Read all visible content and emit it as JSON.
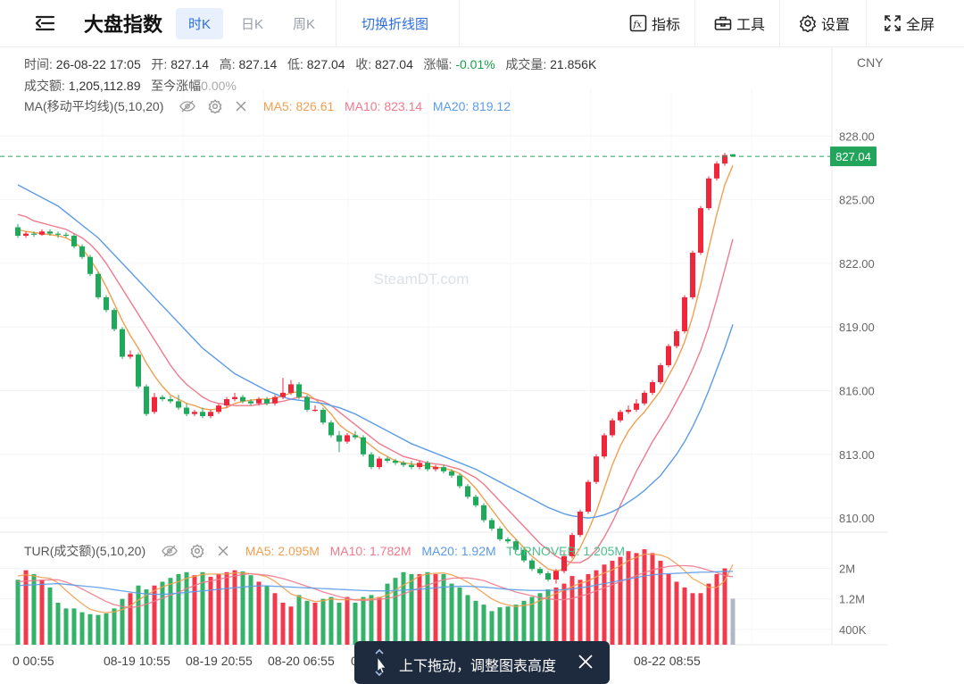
{
  "toolbar": {
    "title": "大盘指数",
    "periods": [
      "时K",
      "日K",
      "周K"
    ],
    "switch_label": "切换折线图",
    "indicators_label": "指标",
    "tools_label": "工具",
    "settings_label": "设置",
    "fullscreen_label": "全屏"
  },
  "info": {
    "time_label": "时间:",
    "time": "26-08-22 17:05",
    "open_label": "开:",
    "open": "827.14",
    "high_label": "高:",
    "high": "827.14",
    "low_label": "低:",
    "low": "827.04",
    "close_label": "收:",
    "close": "827.04",
    "change_label": "涨幅:",
    "change": "-0.01%",
    "volume_label": "成交量:",
    "volume": "21.856K",
    "amount_label": "成交额:",
    "amount": "1,205,112.89",
    "cum_label": "至今涨幅",
    "cum": "0.00%"
  },
  "ma": {
    "label": "MA(移动平均线)(5,10,20)",
    "ma5": "MA5: 826.61",
    "ma10": "MA10: 823.14",
    "ma20": "MA20: 819.12"
  },
  "tur": {
    "label": "TUR(成交额)(5,10,20)",
    "ma5": "MA5: 2.095M",
    "ma10": "MA10: 1.782M",
    "ma20": "MA20: 1.92M",
    "turnover": "TURNOVER: 1.205M"
  },
  "currency": "CNY",
  "watermark": "SteamDT.com",
  "price_tag": "827.04",
  "toast": {
    "text": "上下拖动，调整图表高度"
  },
  "colors": {
    "up": "#f0263a",
    "down": "#1eaa5a",
    "ma5": "#f0a050",
    "ma10": "#f07a8c",
    "ma20": "#5b9be8",
    "accent": "#2f6fdc",
    "last_price": "#22a55a"
  },
  "chart_data": {
    "type": "candlestick",
    "price_axis": {
      "ticks": [
        828,
        825,
        822,
        819,
        816,
        813,
        810
      ],
      "tick_labels": [
        "828.00",
        "825.00",
        "822.00",
        "819.00",
        "816.00",
        "813.00",
        "810.00"
      ],
      "range": [
        809.5,
        830.2
      ]
    },
    "volume_axis": {
      "ticks": [
        2000000,
        1200000,
        400000
      ],
      "tick_labels": [
        "2M",
        "1.2M",
        "400K"
      ],
      "range": [
        0,
        2900000
      ]
    },
    "x_labels": [
      "0 00:55",
      "08-19 10:55",
      "08-19 20:55",
      "08-20 06:55",
      "08-20 1",
      "08-22 08:55"
    ],
    "last_price": 827.04,
    "candles": [
      [
        823.7,
        823.3,
        823.85,
        823.2
      ],
      [
        823.3,
        823.4,
        823.5,
        823.2
      ],
      [
        823.4,
        823.35,
        823.5,
        823.25
      ],
      [
        823.35,
        823.5,
        823.6,
        823.3
      ],
      [
        823.5,
        823.4,
        823.6,
        823.3
      ],
      [
        823.4,
        823.35,
        823.5,
        823.2
      ],
      [
        823.35,
        823.3,
        823.45,
        823.2
      ],
      [
        823.3,
        822.8,
        823.4,
        822.7
      ],
      [
        822.8,
        822.3,
        822.9,
        822.2
      ],
      [
        822.3,
        821.5,
        822.4,
        821.4
      ],
      [
        821.5,
        820.4,
        821.6,
        820.3
      ],
      [
        820.4,
        819.8,
        820.5,
        819.7
      ],
      [
        819.8,
        818.9,
        819.9,
        818.8
      ],
      [
        818.9,
        817.6,
        819.0,
        817.5
      ],
      [
        817.6,
        817.7,
        817.9,
        817.5
      ],
      [
        817.7,
        816.2,
        817.8,
        816.1
      ],
      [
        816.2,
        814.9,
        816.3,
        814.8
      ],
      [
        815.0,
        815.7,
        815.9,
        814.9
      ],
      [
        815.7,
        815.6,
        815.8,
        815.5
      ],
      [
        815.6,
        815.5,
        815.75,
        815.4
      ],
      [
        815.5,
        815.2,
        815.8,
        815.1
      ],
      [
        815.2,
        814.9,
        815.4,
        814.8
      ],
      [
        814.9,
        815.0,
        815.1,
        814.8
      ],
      [
        815.0,
        814.8,
        815.2,
        814.7
      ],
      [
        814.8,
        815.0,
        815.1,
        814.7
      ],
      [
        815.0,
        815.3,
        815.4,
        814.9
      ],
      [
        815.3,
        815.6,
        815.7,
        815.2
      ],
      [
        815.6,
        815.7,
        815.9,
        815.5
      ],
      [
        815.7,
        815.5,
        815.8,
        815.4
      ],
      [
        815.5,
        815.4,
        815.6,
        815.3
      ],
      [
        815.4,
        815.6,
        815.7,
        815.3
      ],
      [
        815.6,
        815.4,
        815.7,
        815.3
      ],
      [
        815.4,
        815.7,
        815.8,
        815.3
      ],
      [
        815.7,
        815.9,
        816.6,
        815.6
      ],
      [
        815.9,
        816.3,
        816.5,
        815.8
      ],
      [
        816.3,
        815.7,
        816.4,
        815.6
      ],
      [
        815.7,
        815.1,
        815.8,
        815.0
      ],
      [
        815.1,
        815.1,
        815.3,
        815.0
      ],
      [
        815.1,
        814.5,
        815.2,
        814.4
      ],
      [
        814.5,
        813.9,
        814.6,
        813.8
      ],
      [
        813.9,
        813.6,
        814.1,
        813.1
      ],
      [
        813.6,
        813.9,
        814.0,
        813.5
      ],
      [
        813.9,
        813.8,
        814.1,
        813.7
      ],
      [
        813.8,
        813.0,
        813.9,
        812.9
      ],
      [
        813.0,
        812.4,
        813.1,
        812.3
      ],
      [
        812.4,
        812.8,
        812.9,
        812.3
      ],
      [
        812.8,
        812.7,
        812.9,
        812.6
      ],
      [
        812.7,
        812.6,
        812.8,
        812.5
      ],
      [
        812.6,
        812.5,
        812.7,
        812.4
      ],
      [
        812.5,
        812.4,
        812.7,
        812.3
      ],
      [
        812.4,
        812.6,
        812.7,
        812.3
      ],
      [
        812.6,
        812.3,
        812.7,
        812.2
      ],
      [
        812.3,
        812.4,
        812.5,
        812.2
      ],
      [
        812.4,
        812.2,
        812.5,
        812.1
      ],
      [
        812.2,
        812.0,
        812.3,
        811.9
      ],
      [
        812.0,
        811.5,
        812.1,
        811.4
      ],
      [
        811.5,
        811.0,
        811.6,
        810.9
      ],
      [
        811.0,
        810.6,
        811.1,
        810.5
      ],
      [
        810.6,
        809.9,
        810.7,
        809.8
      ],
      [
        809.9,
        809.5,
        810.0,
        809.4
      ],
      [
        809.5,
        809.0,
        809.6,
        808.9
      ],
      [
        809.0,
        808.9,
        809.1,
        808.8
      ],
      [
        808.9,
        808.5,
        809.0,
        808.4
      ],
      [
        808.5,
        808.0,
        808.6,
        807.9
      ],
      [
        808.0,
        807.6,
        808.1,
        807.5
      ],
      [
        807.6,
        807.4,
        807.7,
        807.3
      ],
      [
        807.4,
        807.1,
        807.5,
        807.0
      ],
      [
        807.1,
        807.5,
        807.6,
        806.9
      ],
      [
        807.5,
        808.2,
        808.4,
        807.4
      ],
      [
        808.2,
        809.2,
        809.3,
        808.1
      ],
      [
        809.2,
        810.3,
        810.4,
        809.1
      ],
      [
        810.3,
        811.7,
        811.8,
        810.2
      ],
      [
        811.7,
        812.9,
        813.0,
        811.6
      ],
      [
        812.9,
        813.9,
        814.0,
        812.8
      ],
      [
        813.9,
        814.6,
        814.7,
        813.8
      ],
      [
        814.6,
        815.0,
        815.1,
        814.5
      ],
      [
        815.0,
        815.1,
        815.3,
        814.9
      ],
      [
        815.1,
        815.4,
        815.6,
        815.0
      ],
      [
        815.4,
        815.9,
        816.0,
        815.3
      ],
      [
        815.9,
        816.4,
        816.5,
        815.8
      ],
      [
        816.4,
        817.2,
        817.3,
        816.3
      ],
      [
        817.2,
        818.1,
        818.2,
        817.1
      ],
      [
        818.1,
        818.8,
        818.9,
        818.0
      ],
      [
        818.8,
        820.4,
        820.5,
        818.7
      ],
      [
        820.4,
        822.5,
        822.6,
        820.3
      ],
      [
        822.5,
        824.6,
        824.7,
        822.4
      ],
      [
        824.6,
        826.0,
        826.1,
        824.5
      ],
      [
        826.0,
        826.7,
        826.8,
        825.9
      ],
      [
        826.7,
        827.1,
        827.2,
        826.6
      ],
      [
        827.14,
        827.04,
        827.14,
        827.04
      ]
    ],
    "series": [
      {
        "name": "MA5",
        "values": [
          823.6,
          823.5,
          823.45,
          823.4,
          823.35,
          823.3,
          823.2,
          823.0,
          822.7,
          822.2,
          821.6,
          820.9,
          820.1,
          819.3,
          818.6,
          818.0,
          817.3,
          816.7,
          816.2,
          815.8,
          815.6,
          815.4,
          815.3,
          815.15,
          815.1,
          815.15,
          815.2,
          815.4,
          815.5,
          815.55,
          815.6,
          815.6,
          815.65,
          815.75,
          815.9,
          815.95,
          815.85,
          815.6,
          815.3,
          814.9,
          814.4,
          814.1,
          813.9,
          813.7,
          813.4,
          813.1,
          812.9,
          812.7,
          812.6,
          812.55,
          812.5,
          812.45,
          812.4,
          812.35,
          812.25,
          812.1,
          811.8,
          811.4,
          810.9,
          810.4,
          809.9,
          809.4,
          809.0,
          808.6,
          808.2,
          807.9,
          807.6,
          807.5,
          807.6,
          808.0,
          808.6,
          809.4,
          810.3,
          811.4,
          812.5,
          813.4,
          814.1,
          814.6,
          815.0,
          815.5,
          816.0,
          816.7,
          817.4,
          818.3,
          819.5,
          821.0,
          822.7,
          824.3,
          825.7,
          826.61
        ]
      },
      {
        "name": "MA10",
        "values": [
          824.3,
          824.2,
          824.0,
          823.9,
          823.8,
          823.7,
          823.6,
          823.4,
          823.2,
          822.9,
          822.5,
          822.0,
          821.4,
          820.8,
          820.2,
          819.6,
          819.0,
          818.4,
          817.8,
          817.2,
          816.7,
          816.3,
          816.0,
          815.7,
          815.5,
          815.4,
          815.35,
          815.3,
          815.3,
          815.3,
          815.35,
          815.4,
          815.45,
          815.5,
          815.6,
          815.7,
          815.7,
          815.6,
          815.5,
          815.3,
          815.0,
          814.7,
          814.4,
          814.1,
          813.8,
          813.5,
          813.3,
          813.1,
          812.9,
          812.8,
          812.7,
          812.6,
          812.55,
          812.5,
          812.4,
          812.3,
          812.1,
          811.9,
          811.6,
          811.2,
          810.8,
          810.4,
          810.0,
          809.6,
          809.2,
          808.8,
          808.5,
          808.2,
          808.0,
          807.9,
          807.9,
          808.1,
          808.5,
          809.1,
          809.8,
          810.6,
          811.4,
          812.2,
          812.9,
          813.6,
          814.2,
          814.8,
          815.5,
          816.2,
          817.0,
          817.9,
          819.0,
          820.3,
          821.7,
          823.14
        ]
      },
      {
        "name": "MA20",
        "values": [
          825.7,
          825.5,
          825.3,
          825.1,
          824.9,
          824.7,
          824.4,
          824.1,
          823.8,
          823.5,
          823.2,
          822.8,
          822.4,
          822.0,
          821.6,
          821.2,
          820.8,
          820.4,
          820.0,
          819.6,
          819.2,
          818.8,
          818.4,
          818.0,
          817.7,
          817.4,
          817.1,
          816.8,
          816.6,
          816.4,
          816.2,
          816.0,
          815.85,
          815.7,
          815.6,
          815.55,
          815.5,
          815.45,
          815.4,
          815.3,
          815.2,
          815.05,
          814.9,
          814.7,
          814.5,
          814.3,
          814.1,
          813.9,
          813.7,
          813.5,
          813.35,
          813.2,
          813.05,
          812.9,
          812.75,
          812.6,
          812.45,
          812.3,
          812.1,
          811.9,
          811.7,
          811.5,
          811.3,
          811.1,
          810.9,
          810.7,
          810.5,
          810.35,
          810.2,
          810.1,
          810.05,
          810.0,
          810.05,
          810.15,
          810.3,
          810.5,
          810.75,
          811.0,
          811.3,
          811.65,
          812.0,
          812.5,
          813.0,
          813.6,
          814.3,
          815.1,
          816.0,
          817.0,
          818.0,
          819.12
        ]
      }
    ],
    "volumes": [
      1.7,
      1.95,
      1.85,
      1.7,
      1.5,
      1.1,
      0.95,
      0.95,
      0.85,
      0.8,
      0.78,
      0.82,
      0.95,
      1.2,
      1.35,
      1.55,
      1.45,
      1.55,
      1.65,
      1.75,
      1.85,
      1.9,
      1.82,
      1.9,
      1.78,
      1.85,
      1.9,
      1.95,
      1.92,
      1.82,
      1.65,
      1.55,
      1.35,
      1.1,
      1.0,
      1.3,
      1.15,
      1.1,
      1.2,
      1.25,
      1.1,
      1.25,
      1.1,
      1.25,
      1.3,
      1.25,
      1.6,
      1.75,
      1.9,
      1.85,
      1.85,
      1.9,
      1.85,
      1.85,
      1.6,
      1.5,
      1.3,
      1.15,
      1.05,
      0.88,
      0.98,
      1.0,
      1.05,
      1.15,
      1.25,
      1.35,
      1.45,
      1.5,
      1.6,
      1.8,
      1.7,
      1.85,
      1.95,
      2.1,
      2.2,
      2.3,
      2.45,
      2.4,
      2.5,
      2.4,
      2.2,
      1.85,
      1.65,
      1.5,
      1.35,
      1.35,
      1.6,
      1.85,
      2.0,
      1.205
    ],
    "tur_series": [
      {
        "name": "MA5",
        "values": [
          1.8,
          1.83,
          1.8,
          1.76,
          1.74,
          1.62,
          1.42,
          1.24,
          1.07,
          0.93,
          0.87,
          0.84,
          0.86,
          0.92,
          1.02,
          1.17,
          1.3,
          1.42,
          1.51,
          1.59,
          1.65,
          1.74,
          1.79,
          1.84,
          1.85,
          1.85,
          1.85,
          1.88,
          1.88,
          1.86,
          1.83,
          1.78,
          1.66,
          1.5,
          1.33,
          1.26,
          1.19,
          1.13,
          1.15,
          1.2,
          1.18,
          1.18,
          1.18,
          1.19,
          1.2,
          1.23,
          1.3,
          1.43,
          1.56,
          1.67,
          1.8,
          1.85,
          1.87,
          1.88,
          1.83,
          1.75,
          1.64,
          1.5,
          1.35,
          1.2,
          1.1,
          1.04,
          1.0,
          1.03,
          1.06,
          1.16,
          1.25,
          1.34,
          1.43,
          1.52,
          1.61,
          1.67,
          1.78,
          1.88,
          1.96,
          2.07,
          2.2,
          2.29,
          2.37,
          2.37,
          2.35,
          2.27,
          2.12,
          1.94,
          1.73,
          1.62,
          1.5,
          1.5,
          1.67,
          2.095
        ]
      },
      {
        "name": "MA10",
        "values": [
          1.65,
          1.67,
          1.68,
          1.69,
          1.7,
          1.7,
          1.64,
          1.56,
          1.46,
          1.35,
          1.24,
          1.13,
          1.05,
          1.0,
          0.97,
          1.0,
          1.06,
          1.14,
          1.22,
          1.3,
          1.37,
          1.47,
          1.55,
          1.63,
          1.67,
          1.71,
          1.76,
          1.8,
          1.84,
          1.86,
          1.84,
          1.82,
          1.78,
          1.73,
          1.67,
          1.6,
          1.53,
          1.46,
          1.38,
          1.32,
          1.26,
          1.21,
          1.17,
          1.16,
          1.17,
          1.19,
          1.21,
          1.26,
          1.33,
          1.41,
          1.49,
          1.56,
          1.63,
          1.7,
          1.74,
          1.75,
          1.75,
          1.72,
          1.68,
          1.6,
          1.52,
          1.45,
          1.38,
          1.33,
          1.28,
          1.23,
          1.2,
          1.18,
          1.18,
          1.21,
          1.27,
          1.33,
          1.41,
          1.49,
          1.57,
          1.65,
          1.73,
          1.81,
          1.89,
          1.96,
          2.01,
          2.05,
          2.07,
          2.07,
          2.06,
          2.01,
          1.95,
          1.89,
          1.81,
          1.782
        ]
      },
      {
        "name": "MA20",
        "values": [
          1.55,
          1.56,
          1.57,
          1.58,
          1.59,
          1.6,
          1.58,
          1.56,
          1.54,
          1.52,
          1.5,
          1.47,
          1.44,
          1.41,
          1.38,
          1.35,
          1.33,
          1.32,
          1.32,
          1.33,
          1.35,
          1.37,
          1.39,
          1.41,
          1.43,
          1.45,
          1.47,
          1.49,
          1.51,
          1.53,
          1.54,
          1.54,
          1.53,
          1.52,
          1.51,
          1.5,
          1.49,
          1.48,
          1.47,
          1.46,
          1.45,
          1.44,
          1.43,
          1.42,
          1.41,
          1.41,
          1.41,
          1.42,
          1.43,
          1.44,
          1.45,
          1.47,
          1.49,
          1.51,
          1.52,
          1.53,
          1.53,
          1.52,
          1.51,
          1.49,
          1.47,
          1.45,
          1.44,
          1.43,
          1.42,
          1.42,
          1.42,
          1.43,
          1.44,
          1.46,
          1.49,
          1.52,
          1.56,
          1.6,
          1.64,
          1.68,
          1.72,
          1.76,
          1.8,
          1.83,
          1.85,
          1.86,
          1.87,
          1.88,
          1.89,
          1.9,
          1.9,
          1.91,
          1.92,
          1.92
        ]
      }
    ]
  }
}
